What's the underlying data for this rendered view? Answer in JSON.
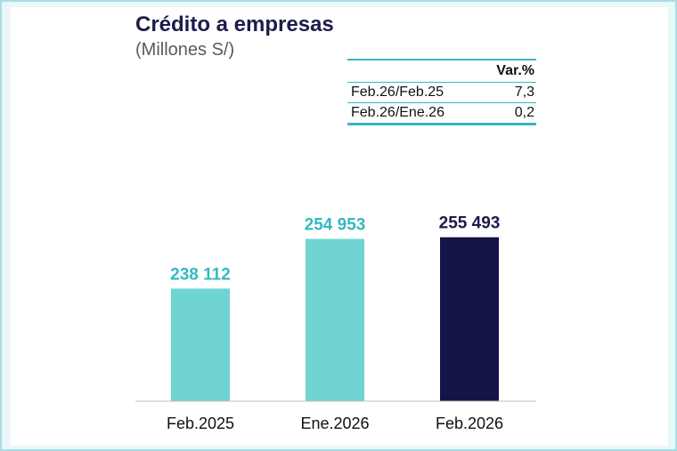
{
  "colors": {
    "bar_light": "#6fd4d2",
    "bar_dark": "#141446",
    "label_light": "#35b8c2",
    "label_dark": "#1c1c4c"
  },
  "header": {
    "title": "Crédito a empresas",
    "subtitle": "(Millones S/)"
  },
  "variation_table": {
    "header_label": "",
    "header_value": "Var.%",
    "rows": [
      {
        "label": "Feb.26/Feb.25",
        "value": "7,3"
      },
      {
        "label": "Feb.26/Ene.26",
        "value": "0,2"
      }
    ]
  },
  "chart_data": {
    "type": "bar",
    "title": "Crédito a empresas",
    "subtitle": "(Millones S/)",
    "categories": [
      "Feb.2025",
      "Ene.2026",
      "Feb.2026"
    ],
    "values": [
      238112,
      254953,
      255493
    ],
    "value_labels": [
      "238 112",
      "254 953",
      "255 493"
    ],
    "bar_colors": [
      "#6fd4d2",
      "#6fd4d2",
      "#141446"
    ],
    "label_colors": [
      "#35b8c2",
      "#35b8c2",
      "#1c1c4c"
    ],
    "ylim": [
      200000,
      260000
    ],
    "xlabel": "",
    "ylabel": "",
    "grid": false,
    "legend": "none"
  }
}
